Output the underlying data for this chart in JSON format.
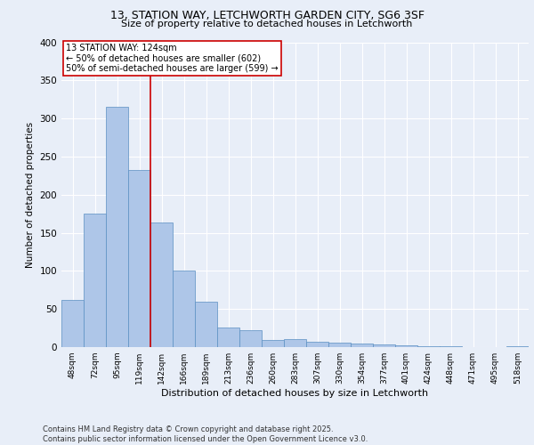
{
  "title_line1": "13, STATION WAY, LETCHWORTH GARDEN CITY, SG6 3SF",
  "title_line2": "Size of property relative to detached houses in Letchworth",
  "xlabel": "Distribution of detached houses by size in Letchworth",
  "ylabel": "Number of detached properties",
  "categories": [
    "48sqm",
    "72sqm",
    "95sqm",
    "119sqm",
    "142sqm",
    "166sqm",
    "189sqm",
    "213sqm",
    "236sqm",
    "260sqm",
    "283sqm",
    "307sqm",
    "330sqm",
    "354sqm",
    "377sqm",
    "401sqm",
    "424sqm",
    "448sqm",
    "471sqm",
    "495sqm",
    "518sqm"
  ],
  "values": [
    62,
    175,
    315,
    232,
    163,
    101,
    60,
    26,
    22,
    9,
    10,
    7,
    6,
    5,
    3,
    2,
    1,
    1,
    0,
    0,
    1
  ],
  "bar_color": "#aec6e8",
  "bar_edge_color": "#5a8fc2",
  "background_color": "#e8eef8",
  "grid_color": "#ffffff",
  "red_line_x": 3.5,
  "annotation_text": "13 STATION WAY: 124sqm\n← 50% of detached houses are smaller (602)\n50% of semi-detached houses are larger (599) →",
  "annotation_box_color": "#ffffff",
  "annotation_box_edge": "#cc0000",
  "red_line_color": "#cc0000",
  "ylim": [
    0,
    400
  ],
  "yticks": [
    0,
    50,
    100,
    150,
    200,
    250,
    300,
    350,
    400
  ],
  "footer_line1": "Contains HM Land Registry data © Crown copyright and database right 2025.",
  "footer_line2": "Contains public sector information licensed under the Open Government Licence v3.0."
}
